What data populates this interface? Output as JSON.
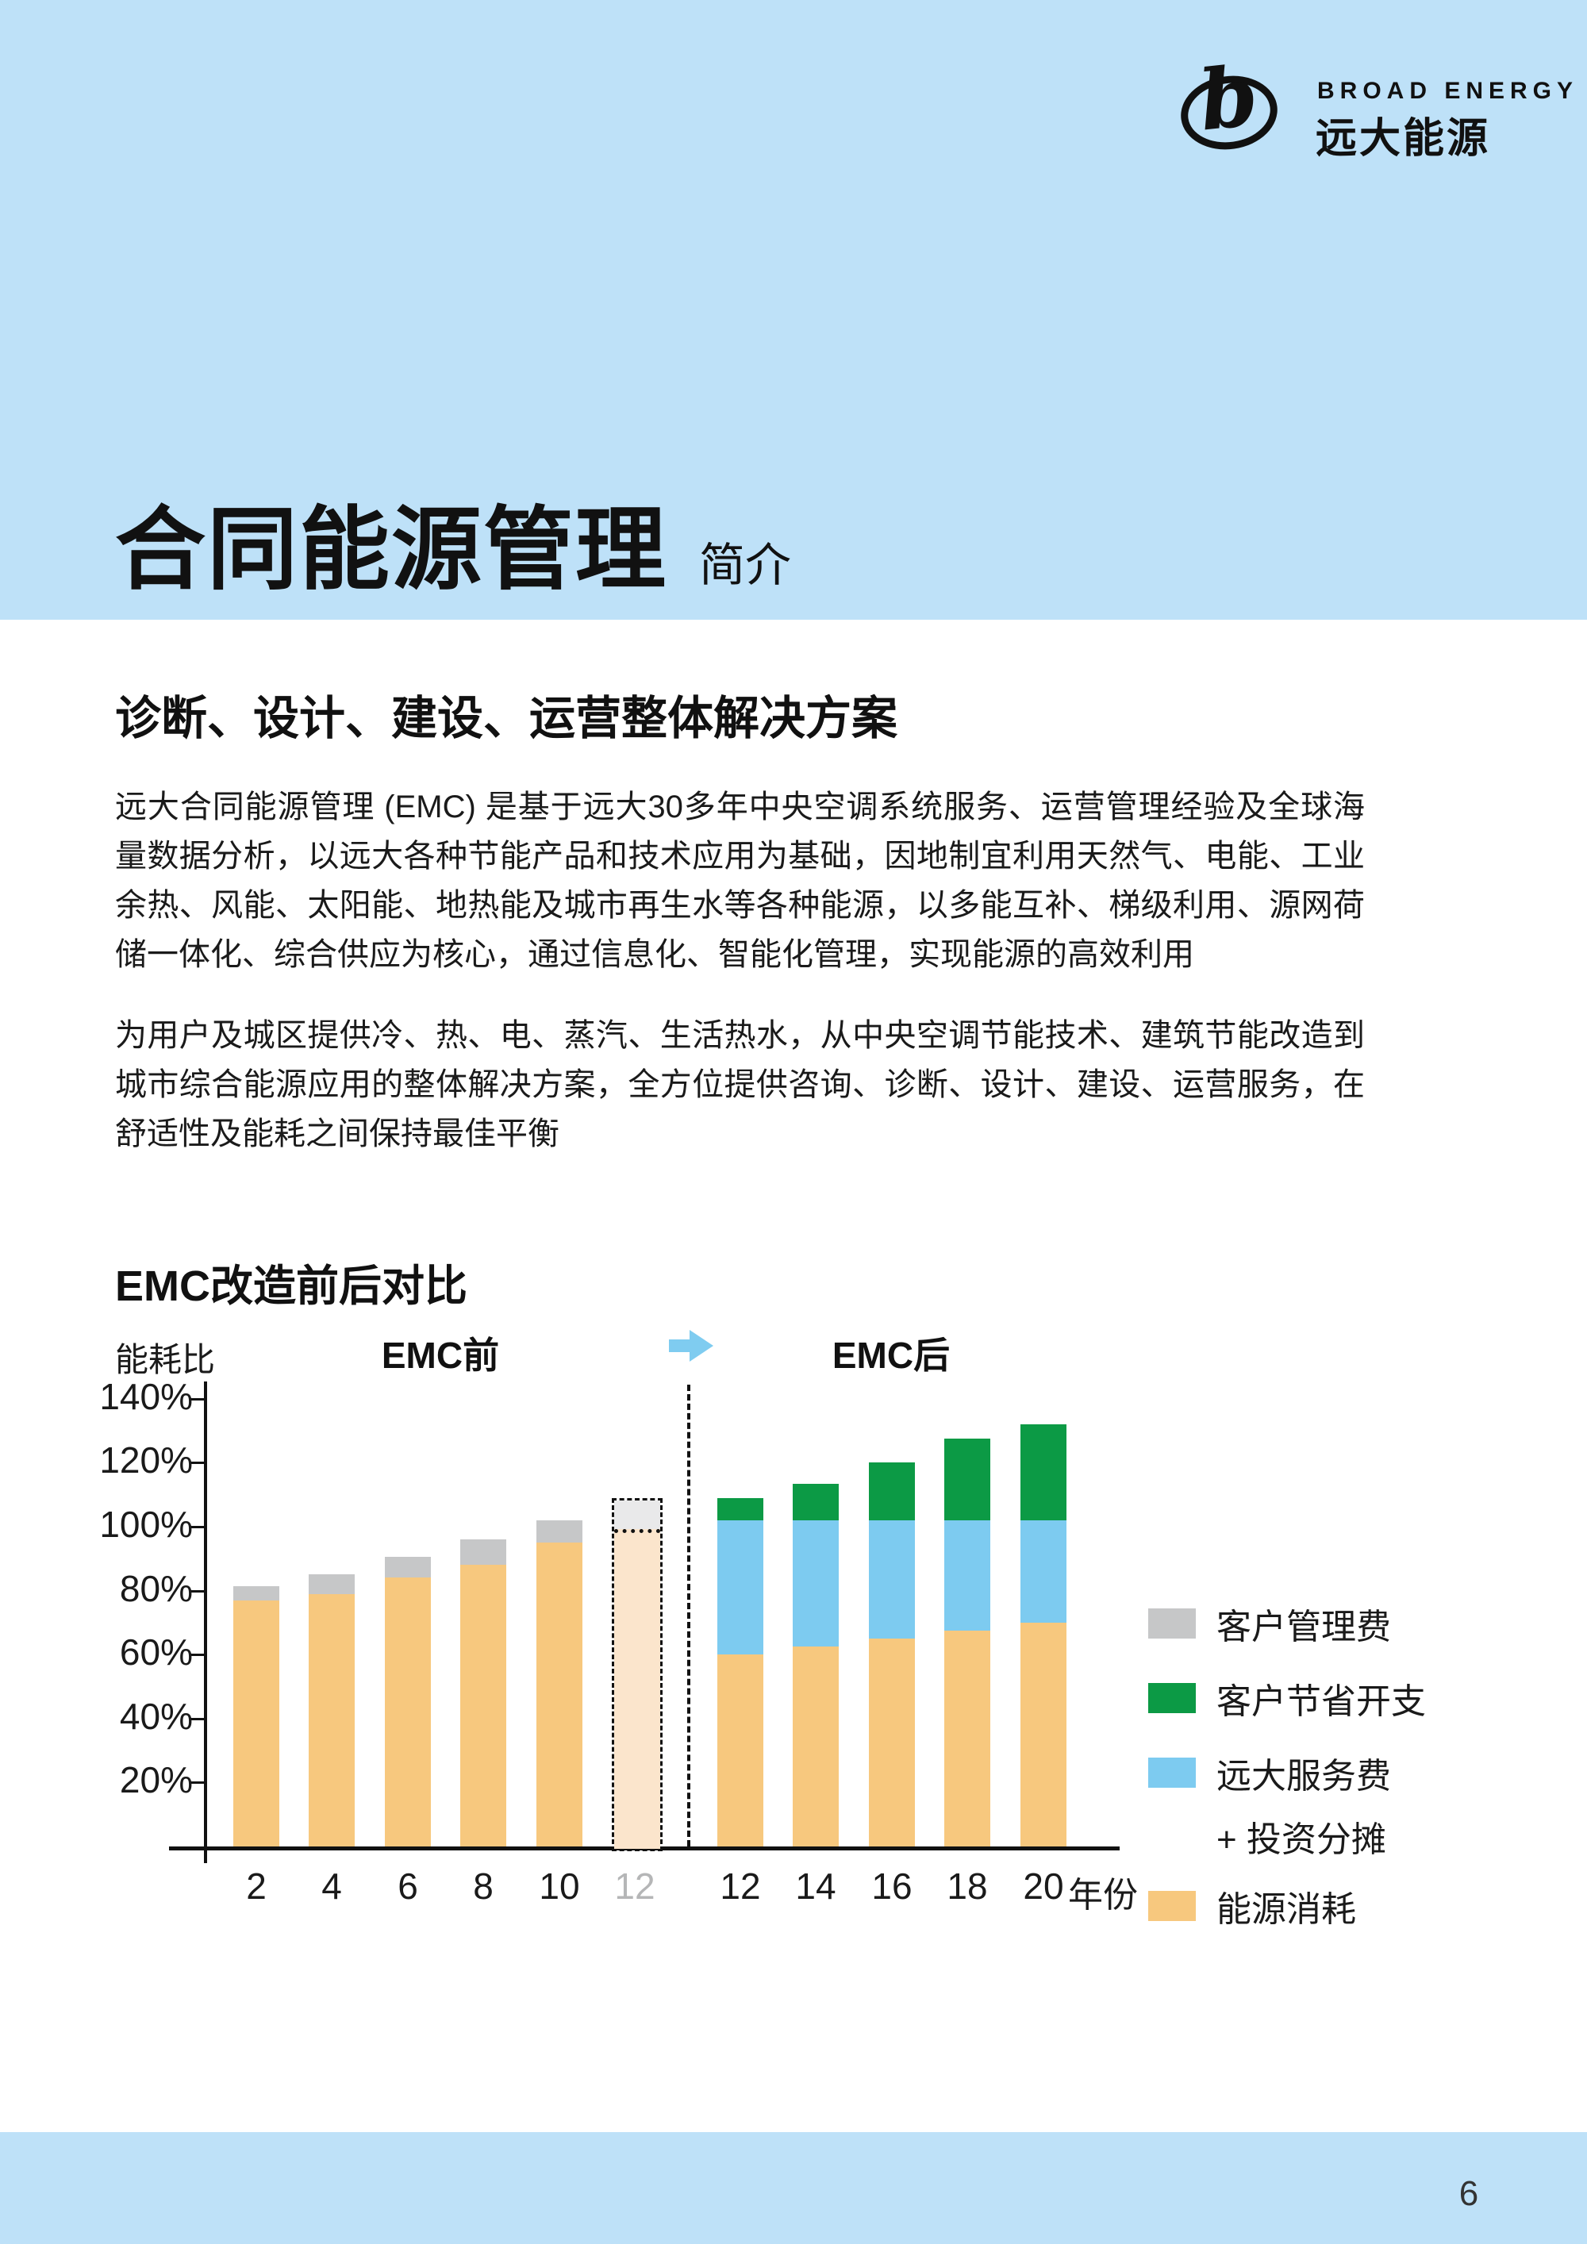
{
  "logo": {
    "brand_en": "BROAD ENERGY",
    "brand_cn": "远大能源",
    "mark_letter": "b"
  },
  "header": {
    "title": "合同能源管理",
    "subtitle": "简介"
  },
  "section": {
    "heading": "诊断、设计、建设、运营整体解决方案",
    "paragraph1": "远大合同能源管理 (EMC) 是基于远大30多年中央空调系统服务、运营管理经验及全球海量数据分析，以远大各种节能产品和技术应用为基础，因地制宜利用天然气、电能、工业余热、风能、太阳能、地热能及城市再生水等各种能源，以多能互补、梯级利用、源网荷储一体化、综合供应为核心，通过信息化、智能化管理，实现能源的高效利用",
    "paragraph2": "为用户及城区提供冷、热、电、蒸汽、生活热水，从中央空调节能技术、建筑节能改造到城市综合能源应用的整体解决方案，全方位提供咨询、诊断、设计、建设、运营服务，在舒适性及能耗之间保持最佳平衡"
  },
  "chart": {
    "title": "EMC改造前后对比",
    "y_axis_name": "能耗比",
    "x_axis_name": "年份",
    "group_before_label": "EMC前",
    "group_after_label": "EMC后",
    "legend": [
      {
        "label": "客户管理费",
        "color_key": "mgmt"
      },
      {
        "label": "客户节省开支",
        "color_key": "savings"
      },
      {
        "label": "远大服务费",
        "label_line2": "+ 投资分摊",
        "color_key": "service"
      },
      {
        "label": "能源消耗",
        "color_key": "energy"
      }
    ],
    "colors": {
      "band_bg": "#BEE1F8",
      "energy": "#F7C87E",
      "energy_faded": "#FBE5CC",
      "mgmt": "#C6C7C8",
      "mgmt_faded": "#E9E9EA",
      "service": "#7DCBF0",
      "savings": "#0C9A45",
      "axis": "#111111",
      "faded_tick_label": "#B5B6B7",
      "arrow": "#7FCCF0"
    }
  },
  "chart_data": {
    "type": "bar",
    "stacked": true,
    "unit": "%",
    "ylim": [
      0,
      140
    ],
    "yticks": [
      140,
      120,
      100,
      80,
      60,
      40,
      20
    ],
    "ytick_labels": [
      "140%",
      "120%",
      "100%",
      "80%",
      "60%",
      "40%",
      "20%"
    ],
    "grid": false,
    "legend_position": "right",
    "groups": [
      {
        "name": "EMC前",
        "bars": [
          {
            "x": "2",
            "projected": false,
            "segments": [
              {
                "key": "energy",
                "label": "能源消耗",
                "value": 77
              },
              {
                "key": "mgmt",
                "label": "客户管理费",
                "value": 4.5
              }
            ]
          },
          {
            "x": "4",
            "projected": false,
            "segments": [
              {
                "key": "energy",
                "label": "能源消耗",
                "value": 79
              },
              {
                "key": "mgmt",
                "label": "客户管理费",
                "value": 6
              }
            ]
          },
          {
            "x": "6",
            "projected": false,
            "segments": [
              {
                "key": "energy",
                "label": "能源消耗",
                "value": 84
              },
              {
                "key": "mgmt",
                "label": "客户管理费",
                "value": 6.5
              }
            ]
          },
          {
            "x": "8",
            "projected": false,
            "segments": [
              {
                "key": "energy",
                "label": "能源消耗",
                "value": 88
              },
              {
                "key": "mgmt",
                "label": "客户管理费",
                "value": 8
              }
            ]
          },
          {
            "x": "10",
            "projected": false,
            "segments": [
              {
                "key": "energy",
                "label": "能源消耗",
                "value": 95
              },
              {
                "key": "mgmt",
                "label": "客户管理费",
                "value": 7
              }
            ]
          },
          {
            "x": "12",
            "projected": true,
            "segments": [
              {
                "key": "energy",
                "label": "能源消耗",
                "value": 100
              },
              {
                "key": "mgmt",
                "label": "客户管理费",
                "value": 9
              }
            ]
          }
        ]
      },
      {
        "name": "EMC后",
        "bars": [
          {
            "x": "12",
            "projected": false,
            "segments": [
              {
                "key": "energy",
                "label": "能源消耗",
                "value": 60
              },
              {
                "key": "service",
                "label": "远大服务费+投资分摊",
                "value": 42
              },
              {
                "key": "savings",
                "label": "客户节省开支",
                "value": 7
              }
            ]
          },
          {
            "x": "14",
            "projected": false,
            "segments": [
              {
                "key": "energy",
                "label": "能源消耗",
                "value": 62.5
              },
              {
                "key": "service",
                "label": "远大服务费+投资分摊",
                "value": 39.5
              },
              {
                "key": "savings",
                "label": "客户节省开支",
                "value": 11.5
              }
            ]
          },
          {
            "x": "16",
            "projected": false,
            "segments": [
              {
                "key": "energy",
                "label": "能源消耗",
                "value": 65
              },
              {
                "key": "service",
                "label": "远大服务费+投资分摊",
                "value": 37
              },
              {
                "key": "savings",
                "label": "客户节省开支",
                "value": 18
              }
            ]
          },
          {
            "x": "18",
            "projected": false,
            "segments": [
              {
                "key": "energy",
                "label": "能源消耗",
                "value": 67.5
              },
              {
                "key": "service",
                "label": "远大服务费+投资分摊",
                "value": 34.5
              },
              {
                "key": "savings",
                "label": "客户节省开支",
                "value": 25.5
              }
            ]
          },
          {
            "x": "20",
            "projected": false,
            "segments": [
              {
                "key": "energy",
                "label": "能源消耗",
                "value": 70
              },
              {
                "key": "service",
                "label": "远大服务费+投资分摊",
                "value": 32
              },
              {
                "key": "savings",
                "label": "客户节省开支",
                "value": 30
              }
            ]
          }
        ]
      }
    ]
  },
  "footer": {
    "page_number": "6"
  }
}
